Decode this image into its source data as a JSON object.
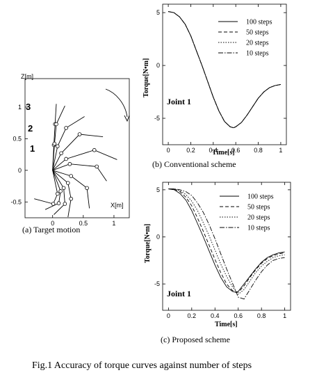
{
  "figure_caption": "Fig.1 Accuracy of torque curves against number of steps",
  "chart_data": [
    {
      "type": "line",
      "caption": "(a) Target motion",
      "xlabel": "X[m]",
      "ylabel": "Z[m]",
      "xlim": [
        -0.45,
        1.25
      ],
      "ylim": [
        -0.75,
        1.45
      ],
      "xticks": [
        0,
        0.5,
        1
      ],
      "xtick_labels": [
        "0",
        "0.5",
        "1"
      ],
      "yticks": [
        -0.5,
        0,
        0.5,
        1
      ],
      "ytick_labels": [
        "-0.5",
        "0",
        "0.5",
        "1"
      ],
      "region_labels": [
        "1",
        "2",
        "3"
      ],
      "series": [
        {
          "x": [
            0,
            0.02,
            0.04,
            0.06
          ],
          "y": [
            0,
            0.4,
            0.73,
            1.05
          ]
        },
        {
          "x": [
            0,
            0.03,
            0.06,
            0.2
          ],
          "y": [
            0,
            0.42,
            0.73,
            1.02
          ]
        },
        {
          "x": [
            0,
            0.08,
            0.22,
            0.52
          ],
          "y": [
            0,
            0.38,
            0.67,
            0.85
          ]
        },
        {
          "x": [
            0,
            0.14,
            0.44,
            0.82
          ],
          "y": [
            0,
            0.27,
            0.57,
            0.53
          ]
        },
        {
          "x": [
            0,
            0.22,
            0.68,
            1.05
          ],
          "y": [
            0,
            0.18,
            0.32,
            0.17
          ]
        },
        {
          "x": [
            0,
            0.28,
            0.72,
            0.88
          ],
          "y": [
            0,
            0.1,
            0.06,
            -0.17
          ]
        },
        {
          "x": [
            0,
            0.3,
            0.56,
            0.6
          ],
          "y": [
            0,
            -0.09,
            -0.28,
            -0.6
          ]
        },
        {
          "x": [
            0,
            0.25,
            0.3,
            0.25
          ],
          "y": [
            0,
            -0.2,
            -0.45,
            -0.74
          ]
        },
        {
          "x": [
            0,
            0.18,
            0.2,
            0.02
          ],
          "y": [
            0,
            -0.28,
            -0.53,
            -0.7
          ]
        },
        {
          "x": [
            0,
            0.13,
            0.1,
            -0.12
          ],
          "y": [
            0,
            -0.33,
            -0.52,
            -0.62
          ]
        },
        {
          "x": [
            0,
            0.08,
            0.01,
            -0.3
          ],
          "y": [
            0,
            -0.37,
            -0.53,
            -0.45
          ]
        }
      ]
    },
    {
      "type": "line",
      "caption": "(b) Conventional scheme",
      "xlabel": "Time[s]",
      "ylabel": "Torque[N•m]",
      "annotation": "Joint 1",
      "xlim": [
        -0.05,
        1.05
      ],
      "ylim": [
        -7.5,
        5.8
      ],
      "xticks": [
        0,
        0.2,
        0.4,
        0.6,
        0.8,
        1
      ],
      "xtick_labels": [
        "0",
        "0.2",
        "0.4",
        "0.6",
        "0.8",
        "1"
      ],
      "yticks": [
        -5,
        0,
        5
      ],
      "ytick_labels": [
        "-5",
        "0",
        "5"
      ],
      "legend_position": "top-right",
      "series": [
        {
          "name": "100 steps",
          "dash": "",
          "x": [
            0,
            0.05,
            0.1,
            0.15,
            0.2,
            0.25,
            0.3,
            0.35,
            0.4,
            0.45,
            0.5,
            0.55,
            0.58,
            0.6,
            0.65,
            0.7,
            0.75,
            0.8,
            0.85,
            0.9,
            0.95,
            1
          ],
          "y": [
            5.1,
            5.0,
            4.6,
            3.9,
            2.8,
            1.4,
            0,
            -1.5,
            -3.0,
            -4.3,
            -5.3,
            -5.8,
            -5.9,
            -5.8,
            -5.4,
            -4.7,
            -3.9,
            -3.1,
            -2.5,
            -2.1,
            -1.9,
            -1.8
          ]
        },
        {
          "name": "50 steps",
          "dash": "5,3",
          "x": [
            0,
            0.05,
            0.1,
            0.15,
            0.2,
            0.25,
            0.3,
            0.35,
            0.4,
            0.45,
            0.5,
            0.55,
            0.58,
            0.6,
            0.65,
            0.7,
            0.75,
            0.8,
            0.85,
            0.9,
            0.95,
            1
          ],
          "y": [
            5.1,
            5.0,
            4.6,
            3.9,
            2.8,
            1.4,
            0,
            -1.5,
            -3.0,
            -4.3,
            -5.3,
            -5.8,
            -5.9,
            -5.8,
            -5.4,
            -4.7,
            -3.9,
            -3.1,
            -2.5,
            -2.1,
            -1.9,
            -1.8
          ]
        },
        {
          "name": "20 steps",
          "dash": "1.5,2",
          "x": [
            0,
            0.05,
            0.1,
            0.15,
            0.2,
            0.25,
            0.3,
            0.35,
            0.4,
            0.45,
            0.5,
            0.55,
            0.58,
            0.6,
            0.65,
            0.7,
            0.75,
            0.8,
            0.85,
            0.9,
            0.95,
            1
          ],
          "y": [
            5.1,
            5.0,
            4.6,
            3.9,
            2.8,
            1.4,
            0,
            -1.5,
            -3.0,
            -4.3,
            -5.3,
            -5.8,
            -5.9,
            -5.8,
            -5.4,
            -4.7,
            -3.9,
            -3.1,
            -2.5,
            -2.1,
            -1.9,
            -1.8
          ]
        },
        {
          "name": "10 steps",
          "dash": "7,2,1.5,2",
          "x": [
            0,
            0.05,
            0.1,
            0.15,
            0.2,
            0.25,
            0.3,
            0.35,
            0.4,
            0.45,
            0.5,
            0.55,
            0.58,
            0.6,
            0.65,
            0.7,
            0.75,
            0.8,
            0.85,
            0.9,
            0.95,
            1
          ],
          "y": [
            5.1,
            5.0,
            4.6,
            3.9,
            2.8,
            1.4,
            0,
            -1.5,
            -3.0,
            -4.3,
            -5.3,
            -5.8,
            -5.9,
            -5.8,
            -5.4,
            -4.7,
            -3.9,
            -3.1,
            -2.5,
            -2.1,
            -1.9,
            -1.8
          ]
        }
      ]
    },
    {
      "type": "line",
      "caption": "(c) Proposed scheme",
      "xlabel": "Time[s]",
      "ylabel": "Torque[N•m]",
      "annotation": "Joint 1",
      "xlim": [
        -0.05,
        1.05
      ],
      "ylim": [
        -7.8,
        5.8
      ],
      "xticks": [
        0,
        0.2,
        0.4,
        0.6,
        0.8,
        1
      ],
      "xtick_labels": [
        "0",
        "0.2",
        "0.4",
        "0.6",
        "0.8",
        "1"
      ],
      "yticks": [
        -5,
        0,
        5
      ],
      "ytick_labels": [
        "-5",
        "0",
        "5"
      ],
      "legend_position": "top-right",
      "series": [
        {
          "name": "100 steps",
          "dash": "",
          "x": [
            0,
            0.05,
            0.1,
            0.15,
            0.2,
            0.25,
            0.3,
            0.35,
            0.4,
            0.45,
            0.5,
            0.55,
            0.58,
            0.6,
            0.65,
            0.7,
            0.75,
            0.8,
            0.85,
            0.9,
            0.95,
            1
          ],
          "y": [
            5.1,
            5.0,
            4.6,
            3.9,
            2.8,
            1.4,
            0,
            -1.5,
            -3.0,
            -4.3,
            -5.3,
            -5.8,
            -5.9,
            -5.8,
            -5.0,
            -4.2,
            -3.4,
            -2.7,
            -2.2,
            -1.9,
            -1.7,
            -1.6
          ]
        },
        {
          "name": "50 steps",
          "dash": "5,3",
          "x": [
            0,
            0.05,
            0.1,
            0.15,
            0.2,
            0.25,
            0.3,
            0.35,
            0.4,
            0.45,
            0.5,
            0.55,
            0.6,
            0.65,
            0.7,
            0.75,
            0.8,
            0.85,
            0.9,
            0.95,
            1
          ],
          "y": [
            5.1,
            5.05,
            4.8,
            4.2,
            3.3,
            2.0,
            0.6,
            -0.9,
            -2.4,
            -3.8,
            -5.0,
            -5.7,
            -5.9,
            -5.2,
            -4.3,
            -3.5,
            -2.8,
            -2.3,
            -2.0,
            -1.8,
            -1.7
          ]
        },
        {
          "name": "20 steps",
          "dash": "1.5,2",
          "x": [
            0,
            0.05,
            0.1,
            0.15,
            0.2,
            0.25,
            0.3,
            0.35,
            0.4,
            0.45,
            0.5,
            0.55,
            0.6,
            0.65,
            0.7,
            0.75,
            0.8,
            0.85,
            0.9,
            0.95,
            1
          ],
          "y": [
            5.1,
            5.1,
            4.9,
            4.5,
            3.8,
            2.8,
            1.5,
            0.1,
            -1.4,
            -2.9,
            -4.2,
            -5.3,
            -6.1,
            -5.6,
            -4.7,
            -3.8,
            -3.1,
            -2.6,
            -2.2,
            -2.0,
            -1.9
          ]
        },
        {
          "name": "10 steps",
          "dash": "7,2,1.5,2",
          "x": [
            0,
            0.05,
            0.1,
            0.15,
            0.2,
            0.25,
            0.3,
            0.35,
            0.4,
            0.45,
            0.5,
            0.55,
            0.6,
            0.65,
            0.7,
            0.75,
            0.8,
            0.85,
            0.9,
            0.95,
            1
          ],
          "y": [
            5.1,
            5.1,
            5.0,
            4.8,
            4.4,
            3.6,
            2.6,
            1.3,
            -0.2,
            -1.8,
            -3.4,
            -4.9,
            -6.4,
            -6.6,
            -5.6,
            -4.6,
            -3.7,
            -3.0,
            -2.5,
            -2.3,
            -2.2
          ]
        }
      ]
    }
  ]
}
